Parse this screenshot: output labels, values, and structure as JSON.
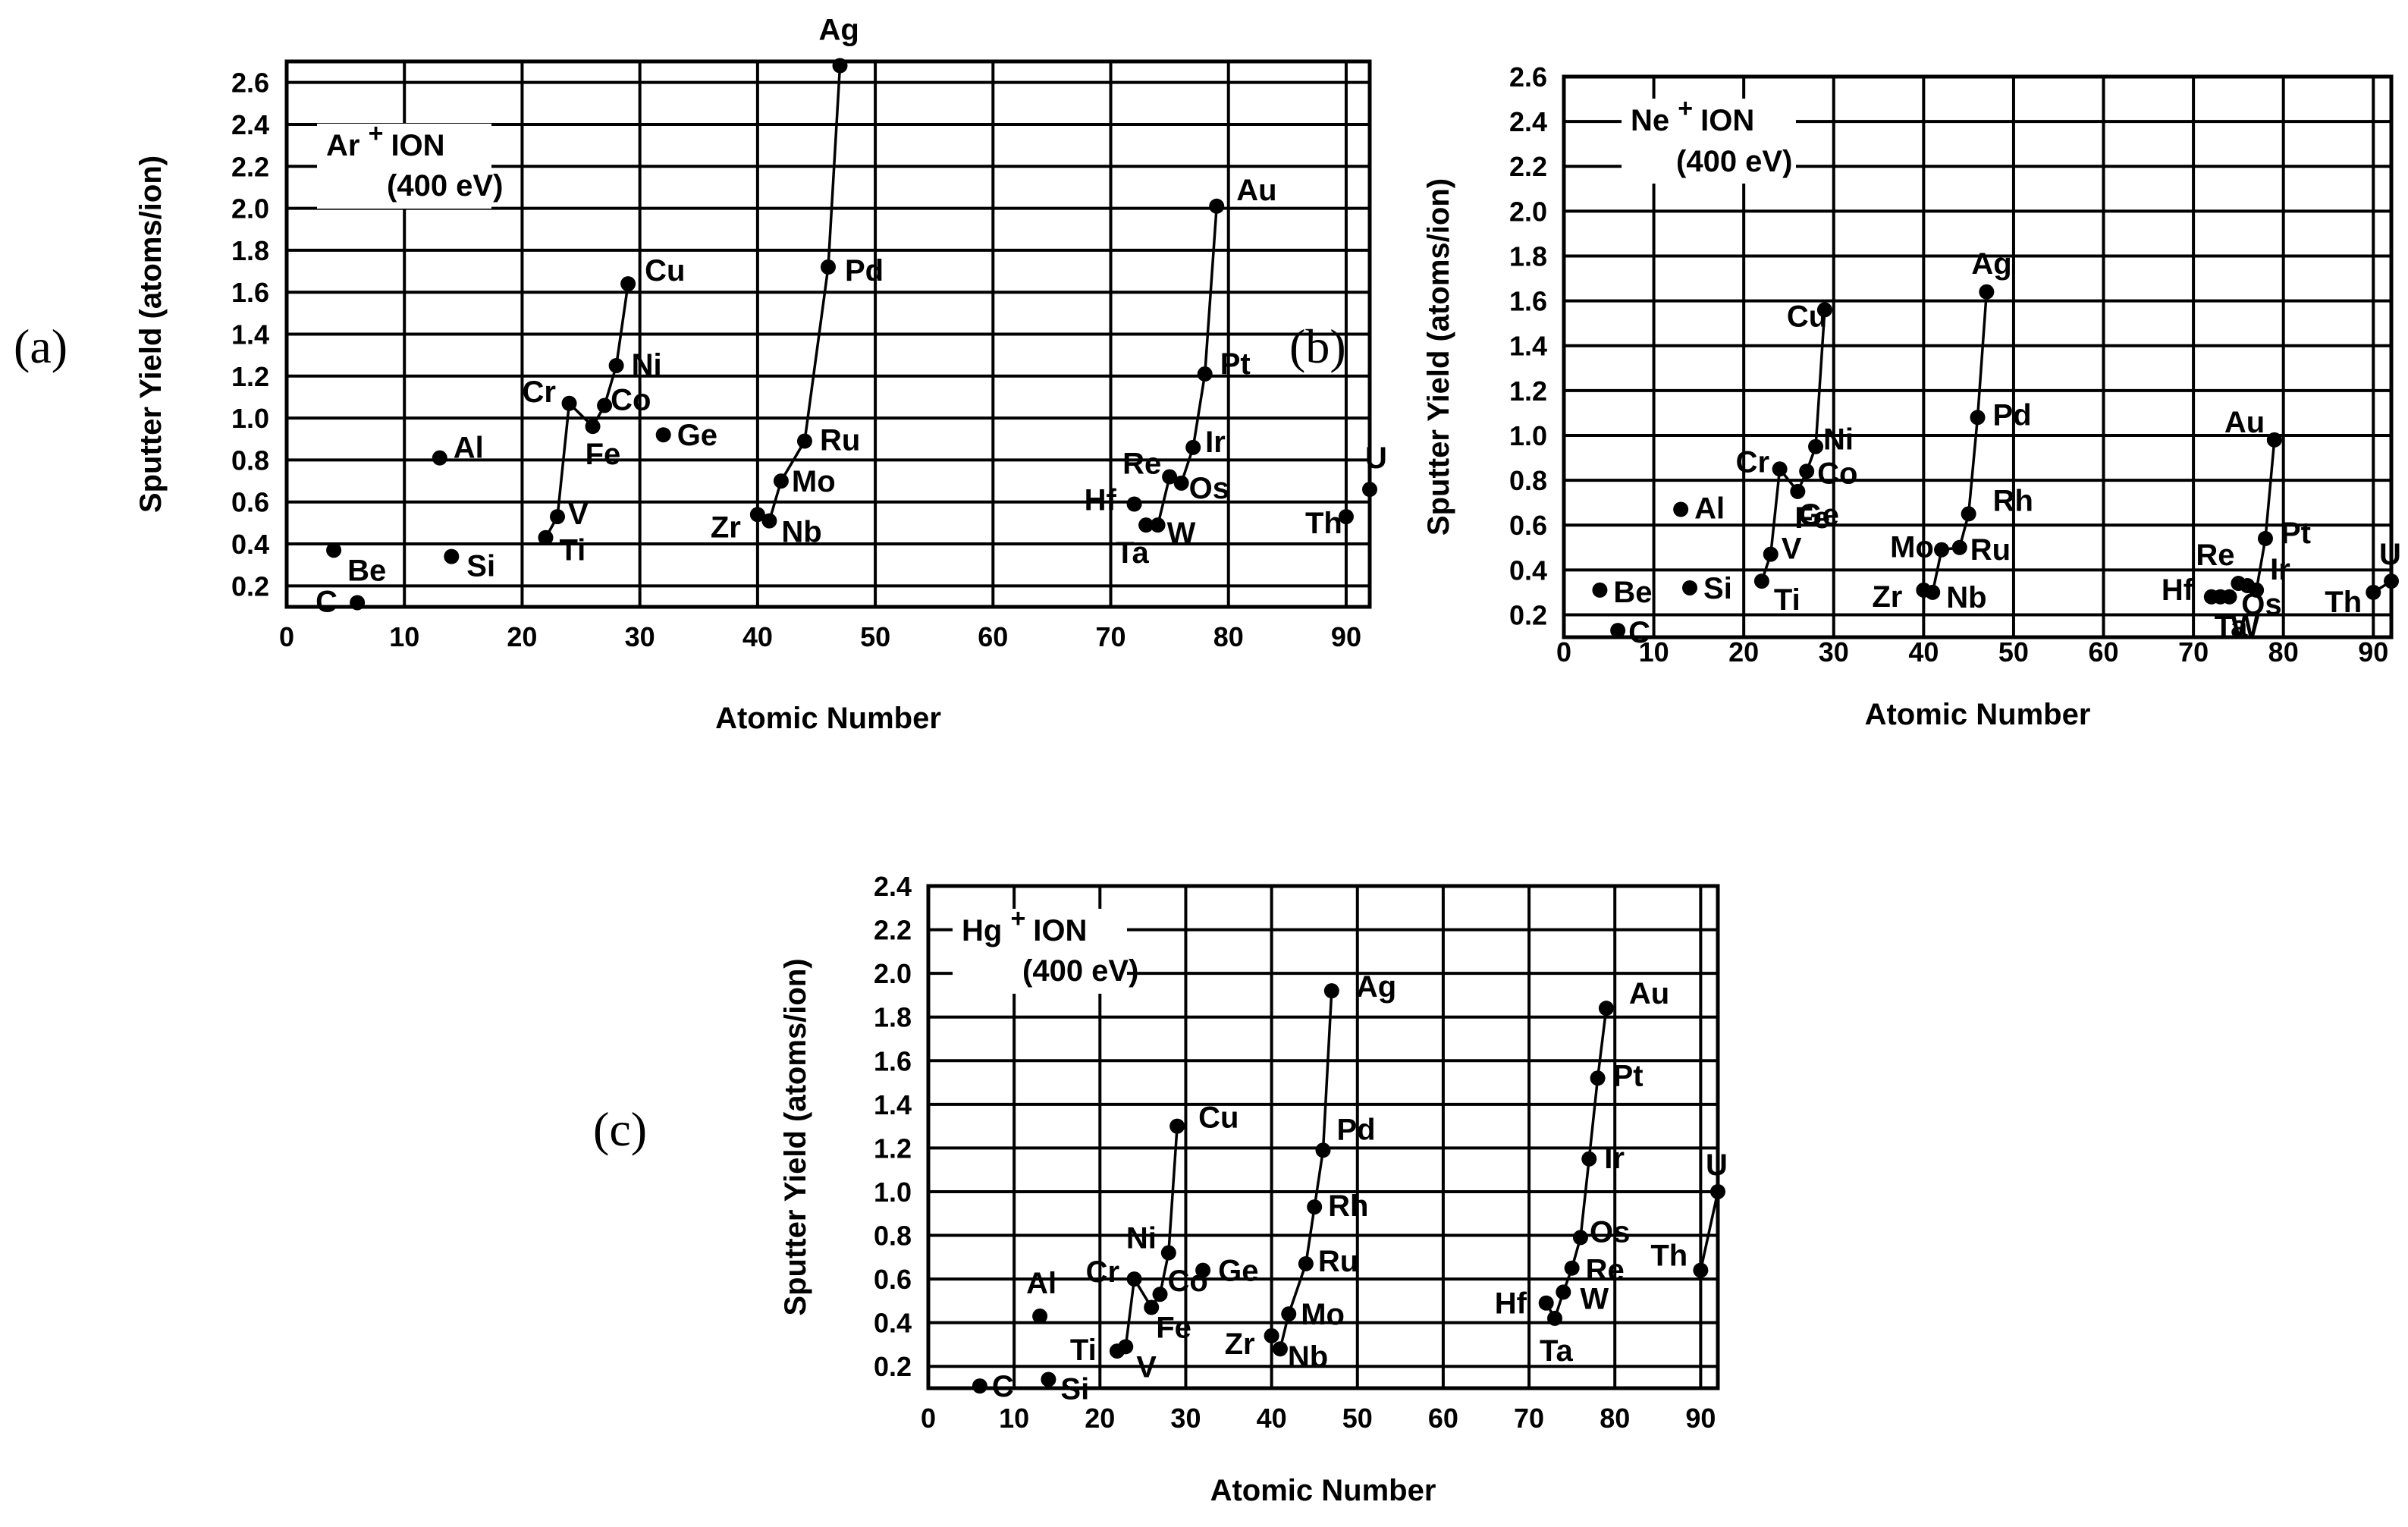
{
  "figure": {
    "panel_labels": [
      "(a)",
      "(b)",
      "(c)"
    ]
  },
  "chart_data": [
    {
      "type": "scatter",
      "panel": "(a)",
      "ion_label": "Ar",
      "ion_superscript": "+",
      "ion_word": "ION",
      "energy_label": "(400 eV)",
      "xlabel": "Atomic Number",
      "ylabel": "Sputter Yield (atoms/ion)",
      "xlim": [
        0,
        92
      ],
      "ylim": [
        0.1,
        2.7
      ],
      "xticks": [
        0,
        10,
        20,
        30,
        40,
        50,
        60,
        70,
        80,
        90
      ],
      "yticks": [
        0.2,
        0.4,
        0.6,
        0.8,
        1.0,
        1.2,
        1.4,
        1.6,
        1.8,
        2.0,
        2.2,
        2.4,
        2.6
      ],
      "ytick_labels": [
        "0.2",
        "0.4",
        "0.6",
        "0.8",
        "1.0",
        "1.2",
        "1.4",
        "1.6",
        "1.8",
        "2.0",
        "2.2",
        "2.4",
        "2.6"
      ],
      "points": [
        {
          "label": "Be",
          "z": 4,
          "y": 0.37
        },
        {
          "label": "C",
          "z": 6,
          "y": 0.12
        },
        {
          "label": "Al",
          "z": 13,
          "y": 0.81
        },
        {
          "label": "Si",
          "z": 14,
          "y": 0.34
        },
        {
          "label": "Ti",
          "z": 22,
          "y": 0.43
        },
        {
          "label": "V",
          "z": 23,
          "y": 0.53
        },
        {
          "label": "Cr",
          "z": 24,
          "y": 1.07
        },
        {
          "label": "Fe",
          "z": 26,
          "y": 0.96
        },
        {
          "label": "Co",
          "z": 27,
          "y": 1.06
        },
        {
          "label": "Ni",
          "z": 28,
          "y": 1.25
        },
        {
          "label": "Cu",
          "z": 29,
          "y": 1.64
        },
        {
          "label": "Ge",
          "z": 32,
          "y": 0.92
        },
        {
          "label": "Zr",
          "z": 40,
          "y": 0.54
        },
        {
          "label": "Nb",
          "z": 41,
          "y": 0.51
        },
        {
          "label": "Mo",
          "z": 42,
          "y": 0.7
        },
        {
          "label": "Ru",
          "z": 44,
          "y": 0.89
        },
        {
          "label": "Pd",
          "z": 46,
          "y": 1.72
        },
        {
          "label": "Ag",
          "z": 47,
          "y": 2.68
        },
        {
          "label": "Hf",
          "z": 72,
          "y": 0.59
        },
        {
          "label": "Ta",
          "z": 73,
          "y": 0.49
        },
        {
          "label": "W",
          "z": 74,
          "y": 0.49
        },
        {
          "label": "Re",
          "z": 75,
          "y": 0.72
        },
        {
          "label": "Os",
          "z": 76,
          "y": 0.69
        },
        {
          "label": "Ir",
          "z": 77,
          "y": 0.86
        },
        {
          "label": "Pt",
          "z": 78,
          "y": 1.21
        },
        {
          "label": "Au",
          "z": 79,
          "y": 2.01
        },
        {
          "label": "Th",
          "z": 90,
          "y": 0.53
        },
        {
          "label": "U",
          "z": 92,
          "y": 0.66
        }
      ],
      "connectors": [
        [
          "Ti",
          "V",
          "Cr",
          "Fe",
          "Co",
          "Ni",
          "Cu"
        ],
        [
          "Zr",
          "Nb",
          "Mo",
          "Ru",
          "Pd",
          "Ag"
        ],
        [
          "Ta",
          "W",
          "Re",
          "Os",
          "Ir",
          "Pt",
          "Au"
        ]
      ]
    },
    {
      "type": "scatter",
      "panel": "(b)",
      "ion_label": "Ne",
      "ion_superscript": "+",
      "ion_word": "ION",
      "energy_label": "(400 eV)",
      "xlabel": "Atomic Number",
      "ylabel": "Sputter Yield (atoms/ion)",
      "xlim": [
        0,
        92
      ],
      "ylim": [
        0.1,
        2.6
      ],
      "xticks": [
        0,
        10,
        20,
        30,
        40,
        50,
        60,
        70,
        80,
        90
      ],
      "yticks": [
        0.2,
        0.4,
        0.6,
        0.8,
        1.0,
        1.2,
        1.4,
        1.6,
        1.8,
        2.0,
        2.2,
        2.4,
        2.6
      ],
      "ytick_labels": [
        "0.2",
        "0.4",
        "0.6",
        "0.8",
        "1.0",
        "1.2",
        "1.4",
        "1.6",
        "1.8",
        "2.0",
        "2.2",
        "2.4",
        "2.6"
      ],
      "points": [
        {
          "label": "Be",
          "z": 4,
          "y": 0.31
        },
        {
          "label": "C",
          "z": 6,
          "y": 0.13
        },
        {
          "label": "Al",
          "z": 13,
          "y": 0.67
        },
        {
          "label": "Si",
          "z": 14,
          "y": 0.32
        },
        {
          "label": "Ti",
          "z": 22,
          "y": 0.35
        },
        {
          "label": "V",
          "z": 23,
          "y": 0.47
        },
        {
          "label": "Cr",
          "z": 24,
          "y": 0.85
        },
        {
          "label": "Fe",
          "z": 26,
          "y": 0.75
        },
        {
          "label": "Co",
          "z": 27,
          "y": 0.84
        },
        {
          "label": "Ni",
          "z": 28,
          "y": 0.95
        },
        {
          "label": "Cu",
          "z": 29,
          "y": 1.56
        },
        {
          "label": "Ge",
          "z": 32,
          "y": null
        },
        {
          "label": "Zr",
          "z": 40,
          "y": 0.31
        },
        {
          "label": "Nb",
          "z": 41,
          "y": 0.3
        },
        {
          "label": "Mo",
          "z": 42,
          "y": 0.49
        },
        {
          "label": "Ru",
          "z": 44,
          "y": 0.5
        },
        {
          "label": "Rh",
          "z": 45,
          "y": 0.65
        },
        {
          "label": "Pd",
          "z": 46,
          "y": 1.08
        },
        {
          "label": "Ag",
          "z": 47,
          "y": 1.64
        },
        {
          "label": "Hf",
          "z": 72,
          "y": 0.28
        },
        {
          "label": "Ta",
          "z": 73,
          "y": 0.28
        },
        {
          "label": "W",
          "z": 74,
          "y": 0.28
        },
        {
          "label": "Re",
          "z": 75,
          "y": 0.34
        },
        {
          "label": "Os",
          "z": 76,
          "y": 0.33
        },
        {
          "label": "Ir",
          "z": 77,
          "y": 0.31
        },
        {
          "label": "Pt",
          "z": 78,
          "y": 0.54
        },
        {
          "label": "Au",
          "z": 79,
          "y": 0.98
        },
        {
          "label": "Th",
          "z": 90,
          "y": 0.3
        },
        {
          "label": "U",
          "z": 92,
          "y": 0.35
        }
      ],
      "connectors": [
        [
          "Ti",
          "V",
          "Cr",
          "Fe",
          "Co",
          "Ni",
          "Cu"
        ],
        [
          "Zr",
          "Nb",
          "Mo",
          "Ru",
          "Rh",
          "Pd",
          "Ag"
        ],
        [
          "Re",
          "Os",
          "Ir",
          "Pt",
          "Au"
        ],
        [
          "Th",
          "U"
        ]
      ]
    },
    {
      "type": "scatter",
      "panel": "(c)",
      "ion_label": "Hg",
      "ion_superscript": "+",
      "ion_word": "ION",
      "energy_label": "(400 eV)",
      "xlabel": "Atomic Number",
      "ylabel": "Sputter Yield (atoms/ion)",
      "xlim": [
        0,
        92
      ],
      "ylim": [
        0.1,
        2.4
      ],
      "xticks": [
        0,
        10,
        20,
        30,
        40,
        50,
        60,
        70,
        80,
        90
      ],
      "yticks": [
        0.2,
        0.4,
        0.6,
        0.8,
        1.0,
        1.2,
        1.4,
        1.6,
        1.8,
        2.0,
        2.2,
        2.4
      ],
      "ytick_labels": [
        "0.2",
        "0.4",
        "0.6",
        "0.8",
        "1.0",
        "1.2",
        "1.4",
        "1.6",
        "1.8",
        "2.0",
        "2.2",
        "2.4"
      ],
      "points": [
        {
          "label": "C",
          "z": 6,
          "y": 0.11
        },
        {
          "label": "Al",
          "z": 13,
          "y": 0.43
        },
        {
          "label": "Si",
          "z": 14,
          "y": 0.14
        },
        {
          "label": "Ti",
          "z": 22,
          "y": 0.27
        },
        {
          "label": "V",
          "z": 23,
          "y": 0.29
        },
        {
          "label": "Cr",
          "z": 24,
          "y": 0.6
        },
        {
          "label": "Fe",
          "z": 26,
          "y": 0.47
        },
        {
          "label": "Co",
          "z": 27,
          "y": 0.53
        },
        {
          "label": "Ni",
          "z": 28,
          "y": 0.72
        },
        {
          "label": "Cu",
          "z": 29,
          "y": 1.3
        },
        {
          "label": "Ge",
          "z": 32,
          "y": 0.64
        },
        {
          "label": "Zr",
          "z": 40,
          "y": 0.34
        },
        {
          "label": "Nb",
          "z": 41,
          "y": 0.28
        },
        {
          "label": "Mo",
          "z": 42,
          "y": 0.44
        },
        {
          "label": "Ru",
          "z": 44,
          "y": 0.67
        },
        {
          "label": "Rh",
          "z": 45,
          "y": 0.93
        },
        {
          "label": "Pd",
          "z": 46,
          "y": 1.19
        },
        {
          "label": "Ag",
          "z": 47,
          "y": 1.92
        },
        {
          "label": "Hf",
          "z": 72,
          "y": 0.49
        },
        {
          "label": "Ta",
          "z": 73,
          "y": 0.42
        },
        {
          "label": "W",
          "z": 74,
          "y": 0.54
        },
        {
          "label": "Re",
          "z": 75,
          "y": 0.65
        },
        {
          "label": "Os",
          "z": 76,
          "y": 0.79
        },
        {
          "label": "Ir",
          "z": 77,
          "y": 1.15
        },
        {
          "label": "Pt",
          "z": 78,
          "y": 1.52
        },
        {
          "label": "Au",
          "z": 79,
          "y": 1.84
        },
        {
          "label": "Th",
          "z": 90,
          "y": 0.64
        },
        {
          "label": "U",
          "z": 92,
          "y": 1.0
        }
      ],
      "connectors": [
        [
          "V",
          "Cr",
          "Fe",
          "Co",
          "Ni",
          "Cu"
        ],
        [
          "Nb",
          "Mo",
          "Ru",
          "Rh",
          "Pd",
          "Ag"
        ],
        [
          "Hf",
          "Ta",
          "W",
          "Re",
          "Os",
          "Ir",
          "Pt",
          "Au"
        ],
        [
          "Th",
          "U"
        ]
      ]
    }
  ]
}
